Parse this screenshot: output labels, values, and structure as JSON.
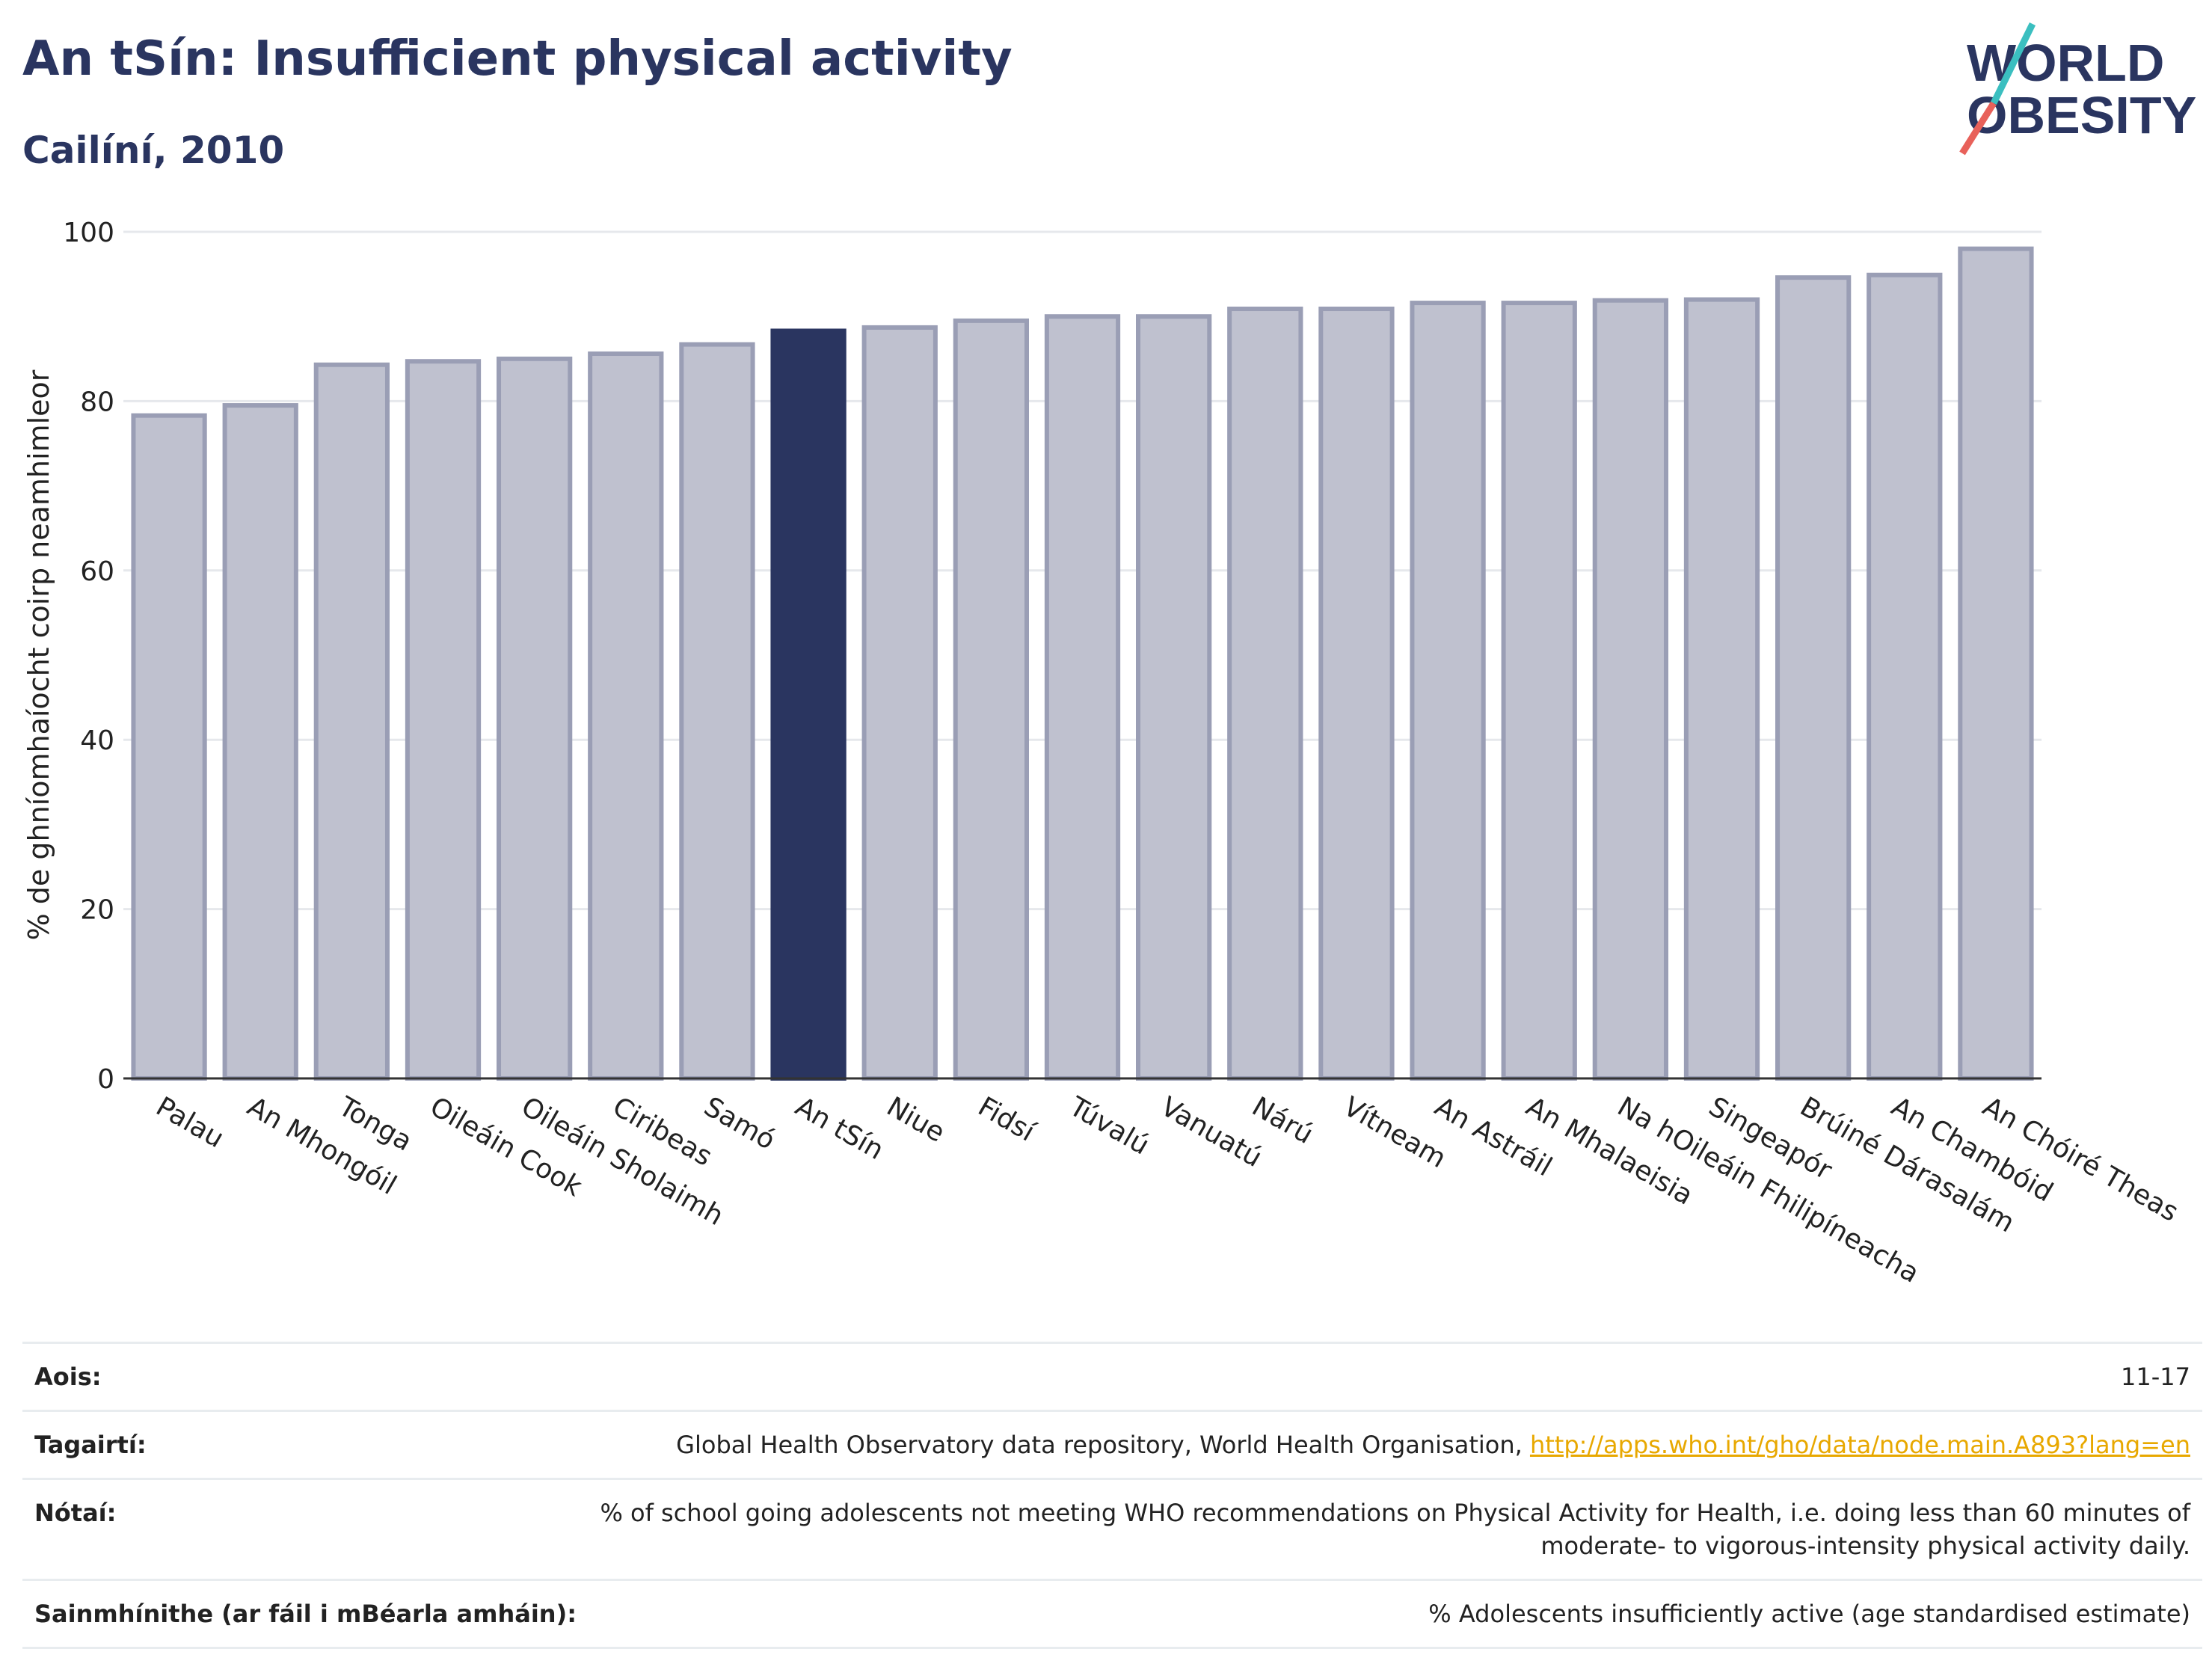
{
  "header": {
    "title": "An tSín: Insufficient physical activity",
    "subtitle": "Cailíní, 2010",
    "logo_line1": "WORLD",
    "logo_line2": "OBESITY"
  },
  "chart_data": {
    "type": "bar",
    "title": "An tSín: Insufficient physical activity",
    "subtitle": "Cailíní, 2010",
    "ylabel": "% de ghníomhaíocht coirp neamhimleor",
    "xlabel": "",
    "ylim": [
      0,
      100
    ],
    "yticks": [
      0,
      20,
      40,
      60,
      80,
      100
    ],
    "grid": true,
    "categories": [
      "Palau",
      "An Mhongóil",
      "Tonga",
      "Oileáin Cook",
      "Oileáin Sholaimh",
      "Ciribeas",
      "Samó",
      "An tSín",
      "Niue",
      "Fidsí",
      "Túvalú",
      "Vanuatú",
      "Nárú",
      "Vítneam",
      "An Astráil",
      "An Mhalaeisia",
      "Na hOileáin Fhilipíneacha",
      "Singeapór",
      "Brúiné Dárasalám",
      "An Chambóid",
      "An Chóiré Theas"
    ],
    "values": [
      78.3,
      79.5,
      84.3,
      84.7,
      85.0,
      85.6,
      86.7,
      88.3,
      88.7,
      89.5,
      90.0,
      90.0,
      90.9,
      90.9,
      91.6,
      91.6,
      91.9,
      92.0,
      94.6,
      94.9,
      98.0
    ],
    "highlight": "An tSín",
    "colors": {
      "bar": "#bfc1cf",
      "bar_border": "#9a9eb5",
      "highlight": "#2a3560"
    }
  },
  "meta": {
    "age": {
      "label": "Aois:",
      "value": "11-17"
    },
    "references": {
      "label": "Tagairtí:",
      "text": "Global Health Observatory data repository, World Health Organisation, ",
      "link": "http://apps.who.int/gho/data/node.main.A893?lang=en"
    },
    "notes": {
      "label": "Nótaí:",
      "line1": "% of school going adolescents not meeting WHO recommendations on Physical Activity for Health, i.e. doing less than 60 minutes of",
      "line2": "moderate- to vigorous-intensity physical activity daily."
    },
    "definitions": {
      "label": "Sainmhínithe (ar fáil i mBéarla amháin):",
      "value": "% Adolescents insufficiently active (age standardised estimate)"
    }
  }
}
